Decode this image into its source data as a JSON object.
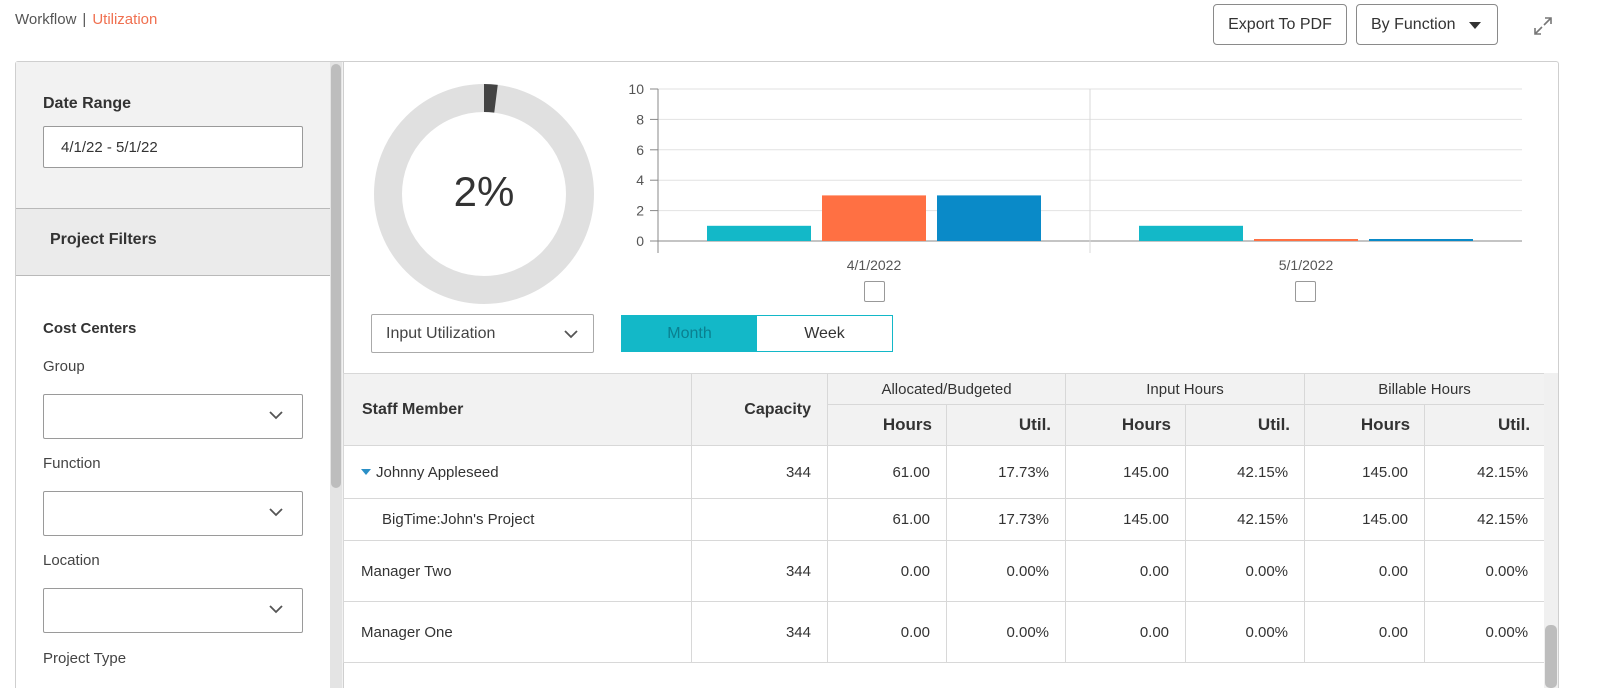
{
  "header": {
    "breadcrumb_root": "Workflow",
    "breadcrumb_separator": "|",
    "breadcrumb_current": "Utilization",
    "export_label": "Export To PDF",
    "view_select_label": "By Function",
    "expand_icon": "expand-arrows-icon"
  },
  "sidebar": {
    "date_range_label": "Date Range",
    "date_range_value": "4/1/22 - 5/1/22",
    "project_filters_label": "Project Filters",
    "cost_centers_label": "Cost Centers",
    "group_label": "Group",
    "group_value": "",
    "function_label": "Function",
    "function_value": "",
    "location_label": "Location",
    "location_value": "",
    "project_type_label": "Project Type"
  },
  "donut": {
    "percent_label": "2%",
    "percent_value": 2,
    "track_color": "#e0e0e0",
    "fill_color": "#444444",
    "metric_select_value": "Input Utilization"
  },
  "toggle": {
    "month_label": "Month",
    "week_label": "Week",
    "selected": "Month"
  },
  "chart_data": {
    "type": "bar",
    "categories": [
      "4/1/2022",
      "5/1/2022"
    ],
    "series": [
      {
        "color": "#13b8c8",
        "values": [
          1,
          1
        ]
      },
      {
        "color": "#ff7043",
        "values": [
          3,
          0.1
        ]
      },
      {
        "color": "#0a8ac8",
        "values": [
          3,
          0.1
        ]
      }
    ],
    "ylim": [
      0,
      10
    ],
    "yticks": [
      0,
      2,
      4,
      6,
      8,
      10
    ],
    "grid": true
  },
  "table": {
    "staff_header": "Staff Member",
    "capacity_header": "Capacity",
    "groups": [
      "Allocated/Budgeted",
      "Input Hours",
      "Billable Hours"
    ],
    "hours_label": "Hours",
    "util_label": "Util.",
    "rows": [
      {
        "name": "Johnny Appleseed",
        "capacity": "344",
        "alloc_hours": "61.00",
        "alloc_util": "17.73%",
        "input_hours": "145.00",
        "input_util": "42.15%",
        "bill_hours": "145.00",
        "bill_util": "42.15%"
      },
      {
        "name": "BigTime:John's Project",
        "capacity": "",
        "alloc_hours": "61.00",
        "alloc_util": "17.73%",
        "input_hours": "145.00",
        "input_util": "42.15%",
        "bill_hours": "145.00",
        "bill_util": "42.15%"
      },
      {
        "name": "Manager Two",
        "capacity": "344",
        "alloc_hours": "0.00",
        "alloc_util": "0.00%",
        "input_hours": "0.00",
        "input_util": "0.00%",
        "bill_hours": "0.00",
        "bill_util": "0.00%"
      },
      {
        "name": "Manager One",
        "capacity": "344",
        "alloc_hours": "0.00",
        "alloc_util": "0.00%",
        "input_hours": "0.00",
        "input_util": "0.00%",
        "bill_hours": "0.00",
        "bill_util": "0.00%"
      }
    ]
  }
}
